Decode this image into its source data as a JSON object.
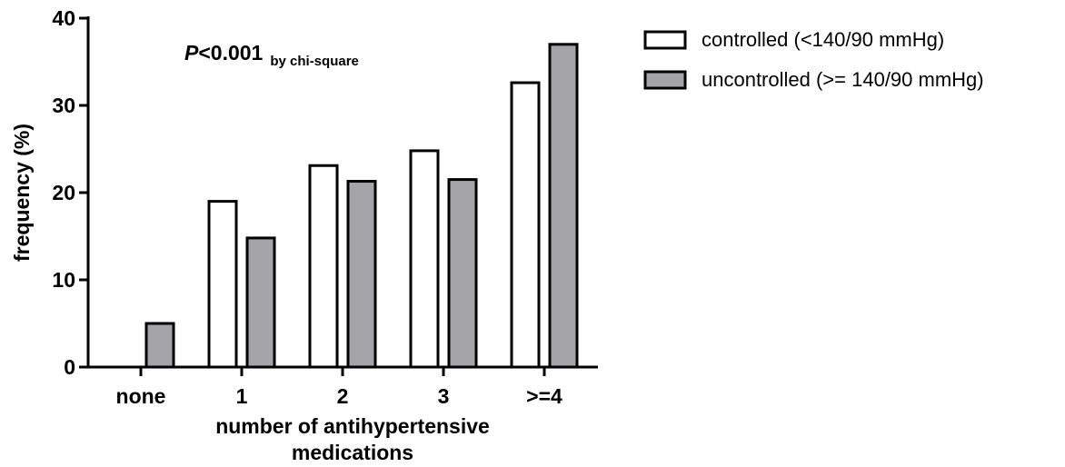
{
  "chart_data": {
    "type": "bar",
    "categories": [
      "none",
      "1",
      "2",
      "3",
      ">=4"
    ],
    "series": [
      {
        "name": "controlled (<140/90 mmHg)",
        "values": [
          0,
          19.0,
          23.1,
          24.8,
          32.6
        ],
        "color": "#ffffff"
      },
      {
        "name": "uncontrolled (>= 140/90 mmHg)",
        "values": [
          5.0,
          14.8,
          21.3,
          21.5,
          37.0
        ],
        "color": "#a5a5a9"
      }
    ],
    "ylabel": "frequency (%)",
    "xlabel": "number of antihypertensive medications",
    "xlabel_lines": [
      "number of antihypertensive",
      "medications"
    ],
    "ylim": [
      0,
      40
    ],
    "yticks": [
      0,
      10,
      20,
      30,
      40
    ],
    "annotation": {
      "p_symbol": "P",
      "p_value": "<0.001",
      "test": "by chi-square"
    },
    "legend_position": "top-right",
    "grid": false
  }
}
